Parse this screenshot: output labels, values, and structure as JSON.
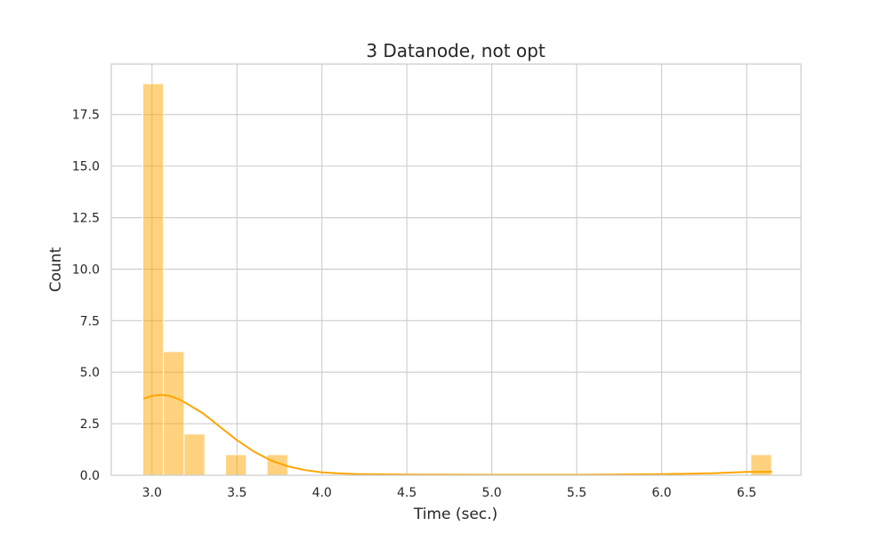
{
  "chart_data": {
    "type": "bar",
    "subtype": "histogram-with-kde",
    "title": "3 Datanode, not opt",
    "xlabel": "Time (sec.)",
    "ylabel": "Count",
    "xlim": [
      2.76,
      6.82
    ],
    "ylim": [
      0,
      19.95
    ],
    "x_ticks": [
      3.0,
      3.5,
      4.0,
      4.5,
      5.0,
      5.5,
      6.0,
      6.5
    ],
    "x_tick_labels": [
      "3.0",
      "3.5",
      "4.0",
      "4.5",
      "5.0",
      "5.5",
      "6.0",
      "6.5"
    ],
    "y_ticks": [
      0,
      2.5,
      5,
      7.5,
      10,
      12.5,
      15,
      17.5
    ],
    "y_tick_labels": [
      "0.0",
      "2.5",
      "5.0",
      "7.5",
      "10.0",
      "12.5",
      "15.0",
      "17.5"
    ],
    "grid": true,
    "bar_color": "#ffa500",
    "bar_opacity": 0.5,
    "kde_color": "#ffa500",
    "bins": [
      {
        "x0": 2.946,
        "x1": 3.067,
        "count": 19
      },
      {
        "x0": 3.067,
        "x1": 3.189,
        "count": 6
      },
      {
        "x0": 3.189,
        "x1": 3.311,
        "count": 2
      },
      {
        "x0": 3.311,
        "x1": 3.433,
        "count": 0
      },
      {
        "x0": 3.433,
        "x1": 3.555,
        "count": 1
      },
      {
        "x0": 3.555,
        "x1": 3.677,
        "count": 0
      },
      {
        "x0": 3.677,
        "x1": 3.799,
        "count": 1
      },
      {
        "x0": 6.525,
        "x1": 6.647,
        "count": 1
      }
    ],
    "kde": {
      "x": [
        2.95,
        3.0,
        3.05,
        3.1,
        3.15,
        3.2,
        3.3,
        3.4,
        3.5,
        3.6,
        3.7,
        3.8,
        3.9,
        4.0,
        4.1,
        4.2,
        4.5,
        5.0,
        5.5,
        6.0,
        6.3,
        6.5,
        6.65
      ],
      "y": [
        3.72,
        3.85,
        3.9,
        3.86,
        3.72,
        3.5,
        3.0,
        2.35,
        1.7,
        1.15,
        0.72,
        0.43,
        0.25,
        0.14,
        0.09,
        0.06,
        0.03,
        0.02,
        0.02,
        0.05,
        0.1,
        0.16,
        0.17
      ]
    }
  }
}
